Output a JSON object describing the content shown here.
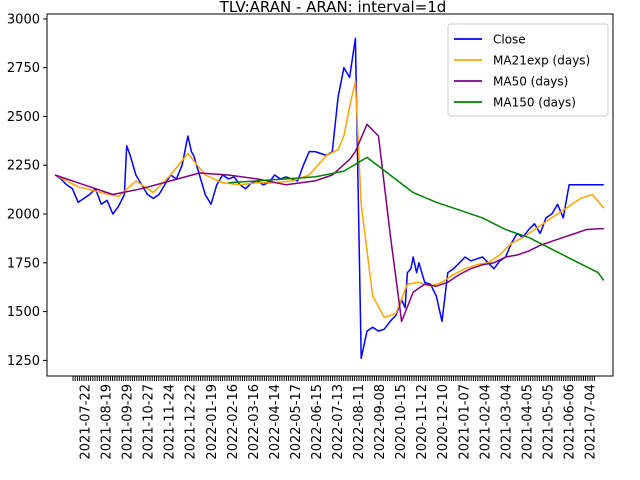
{
  "chart_data": {
    "type": "line",
    "title": "TLV:ARAN - ARAN: interval=1d",
    "xlabel": "",
    "ylabel": "",
    "ylim": [
      1170,
      3025
    ],
    "yticks": [
      1250,
      1500,
      1750,
      2000,
      2250,
      2500,
      2750,
      3000
    ],
    "x_tick_labels": [
      "2021-07-22",
      "2021-08-19",
      "2021-09-29",
      "2021-10-27",
      "2021-11-24",
      "2021-12-22",
      "2022-01-19",
      "2022-02-16",
      "2022-03-16",
      "2022-04-14",
      "2022-05-17",
      "2022-06-15",
      "2022-07-13",
      "2022-08-11",
      "2022-09-08",
      "2020-10-15",
      "2020-11-12",
      "2020-12-10",
      "2021-01-07",
      "2021-02-04",
      "2021-03-04",
      "2021-04-05",
      "2021-05-05",
      "2021-06-06",
      "2021-07-04"
    ],
    "legend": {
      "position": "top-right",
      "entries": [
        "Close",
        "MA21exp (days)",
        "MA50 (days)",
        "MA150 (days)"
      ]
    },
    "grid": false,
    "series": [
      {
        "name": "Close",
        "color": "#0000ff",
        "x": [
          0,
          5,
          10,
          15,
          20,
          25,
          30,
          35,
          40,
          45,
          50,
          55,
          60,
          62,
          65,
          70,
          75,
          80,
          85,
          90,
          95,
          100,
          105,
          110,
          115,
          118,
          120,
          125,
          130,
          135,
          140,
          145,
          150,
          155,
          160,
          165,
          170,
          175,
          180,
          185,
          190,
          195,
          200,
          205,
          210,
          215,
          220,
          225,
          230,
          235,
          240,
          245,
          250,
          255,
          260,
          265,
          270,
          275,
          280,
          285,
          290,
          295,
          300,
          303,
          305,
          308,
          310,
          313,
          315,
          320,
          325,
          330,
          335,
          340,
          345,
          350,
          355,
          360,
          365,
          370,
          375,
          380,
          385,
          390,
          395,
          400,
          405,
          410,
          415,
          420,
          425,
          430,
          435,
          440,
          445,
          450,
          455,
          460,
          465,
          470,
          475
        ],
        "y": [
          2200,
          2180,
          2150,
          2130,
          2060,
          2080,
          2100,
          2130,
          2050,
          2070,
          2000,
          2040,
          2100,
          2350,
          2300,
          2200,
          2150,
          2100,
          2080,
          2100,
          2150,
          2200,
          2180,
          2250,
          2400,
          2320,
          2300,
          2200,
          2100,
          2050,
          2150,
          2200,
          2180,
          2190,
          2150,
          2130,
          2160,
          2170,
          2150,
          2160,
          2200,
          2180,
          2190,
          2180,
          2170,
          2250,
          2320,
          2320,
          2310,
          2300,
          2320,
          2600,
          2750,
          2700,
          2900,
          1260,
          1400,
          1420,
          1400,
          1410,
          1450,
          1480,
          1560,
          1520,
          1700,
          1720,
          1780,
          1700,
          1750,
          1650,
          1640,
          1580,
          1450,
          1700,
          1720,
          1750,
          1780,
          1760,
          1770,
          1780,
          1750,
          1720,
          1760,
          1780,
          1850,
          1900,
          1880,
          1920,
          1950,
          1900,
          1980,
          2000,
          2050,
          1980,
          2150,
          2150,
          2150,
          2150,
          2150,
          2150,
          2150
        ]
      },
      {
        "name": "MA21exp (days)",
        "color": "#ffa500",
        "x": [
          0,
          20,
          40,
          55,
          70,
          85,
          100,
          115,
          130,
          145,
          160,
          175,
          190,
          205,
          220,
          235,
          245,
          250,
          255,
          260,
          265,
          275,
          285,
          295,
          305,
          315,
          325,
          335,
          345,
          355,
          365,
          375,
          385,
          395,
          405,
          415,
          425,
          435,
          445,
          455,
          465,
          475
        ],
        "y": [
          2200,
          2140,
          2110,
          2090,
          2170,
          2110,
          2200,
          2310,
          2200,
          2160,
          2150,
          2160,
          2160,
          2170,
          2200,
          2300,
          2330,
          2400,
          2550,
          2680,
          2050,
          1580,
          1470,
          1490,
          1640,
          1650,
          1630,
          1650,
          1690,
          1720,
          1740,
          1750,
          1790,
          1850,
          1880,
          1920,
          1960,
          2000,
          2040,
          2080,
          2100,
          2030
        ]
      },
      {
        "name": "MA50 (days)",
        "color": "#800080",
        "x": [
          0,
          25,
          50,
          75,
          100,
          125,
          150,
          175,
          200,
          225,
          240,
          255,
          260,
          270,
          280,
          290,
          300,
          310,
          320,
          330,
          340,
          350,
          360,
          370,
          380,
          390,
          400,
          410,
          420,
          430,
          440,
          450,
          460,
          470,
          475
        ],
        "y": [
          2200,
          2150,
          2100,
          2130,
          2170,
          2210,
          2200,
          2180,
          2150,
          2170,
          2200,
          2280,
          2320,
          2460,
          2400,
          1900,
          1450,
          1600,
          1640,
          1630,
          1650,
          1690,
          1720,
          1740,
          1750,
          1780,
          1790,
          1810,
          1840,
          1860,
          1880,
          1900,
          1920,
          1925,
          1925
        ]
      },
      {
        "name": "MA150 (days)",
        "color": "#008000",
        "x": [
          150,
          175,
          200,
          225,
          250,
          270,
          290,
          310,
          330,
          350,
          370,
          390,
          410,
          430,
          450,
          470,
          475
        ],
        "y": [
          2160,
          2170,
          2180,
          2190,
          2220,
          2290,
          2200,
          2110,
          2060,
          2020,
          1980,
          1920,
          1880,
          1820,
          1760,
          1700,
          1660
        ]
      }
    ]
  }
}
